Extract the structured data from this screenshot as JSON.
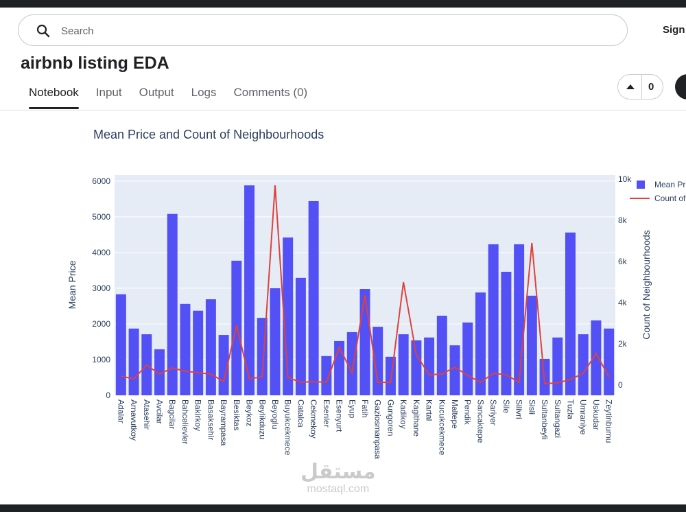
{
  "header": {
    "search_placeholder": "Search",
    "sign_in": "Sign In"
  },
  "notebook": {
    "title": "airbnb listing EDA",
    "tabs": [
      "Notebook",
      "Input",
      "Output",
      "Logs",
      "Comments (0)"
    ],
    "active_tab": 0,
    "votes": 0
  },
  "chart_data": {
    "type": "bar_line",
    "title": "Mean Price and Count of Neighbourhoods",
    "ylabel": "Mean Price",
    "y2label": "Count of Neighbourhoods",
    "categories": [
      "Adalar",
      "Arnavutkoy",
      "Atasehir",
      "Avcilar",
      "Bagcilar",
      "Bahcelievler",
      "Bakirkoy",
      "Basaksehir",
      "Bayrampasa",
      "Besiktas",
      "Beykoz",
      "Beylikduzu",
      "Beyoglu",
      "Buyukcekmece",
      "Catalca",
      "Cekmekoy",
      "Esenler",
      "Esenyurt",
      "Eyup",
      "Fatih",
      "Gaziosmanpasa",
      "Gungoren",
      "Kadikoy",
      "Kagithane",
      "Kartal",
      "Kucukcekmece",
      "Maltepe",
      "Pendik",
      "Sancaktepe",
      "Sariyer",
      "Sile",
      "Silivri",
      "Sisli",
      "Sultanbeyli",
      "Sultangazi",
      "Tuzla",
      "Umraniye",
      "Uskudar",
      "Zeytinburnu"
    ],
    "series": [
      {
        "name": "Mean Price",
        "type": "bar",
        "color": "#5351f5",
        "values": [
          2830,
          1870,
          1710,
          1290,
          5080,
          2560,
          2370,
          2690,
          1690,
          3770,
          5880,
          2170,
          3000,
          4420,
          3290,
          5440,
          1100,
          1520,
          1770,
          2980,
          1920,
          1080,
          1710,
          1540,
          1620,
          2230,
          1400,
          2040,
          2880,
          4230,
          3460,
          4230,
          2790,
          1020,
          1620,
          4560,
          1710,
          2100,
          1870
        ]
      },
      {
        "name": "Count of Neighbourhoods",
        "type": "line",
        "axis": "y2",
        "color": "#e0413a",
        "values": [
          430,
          300,
          970,
          530,
          830,
          670,
          600,
          530,
          170,
          2900,
          300,
          400,
          9700,
          370,
          130,
          170,
          130,
          1830,
          600,
          4370,
          130,
          130,
          5000,
          1470,
          500,
          530,
          870,
          470,
          130,
          570,
          500,
          130,
          6900,
          70,
          100,
          270,
          570,
          1530,
          400
        ]
      }
    ],
    "ylim": [
      0,
      6170
    ],
    "yticks": [
      0,
      1000,
      2000,
      3000,
      4000,
      5000,
      6000
    ],
    "y2lim": [
      -500,
      10200
    ],
    "y2ticks": [
      0,
      {
        "value": 2000,
        "label": "2k"
      },
      {
        "value": 4000,
        "label": "4k"
      },
      {
        "value": 6000,
        "label": "6k"
      },
      {
        "value": 8000,
        "label": "8k"
      },
      {
        "value": 10000,
        "label": "10k"
      }
    ],
    "grid": true,
    "plot_background": "#e5ecf6",
    "legend": "right"
  },
  "watermark": {
    "logo": "مستقل",
    "site": "mostaql.com"
  }
}
